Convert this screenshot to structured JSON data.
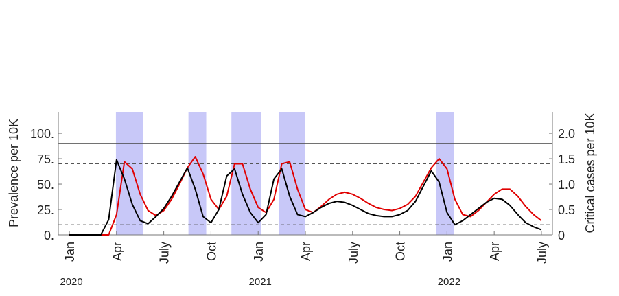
{
  "chart_data": {
    "type": "line",
    "y_label": "Prevalence per 10K",
    "y2_label": "Critical cases per 10K",
    "x": [
      0,
      0.5,
      1,
      1.5,
      2,
      2.5,
      3,
      3.5,
      4,
      4.5,
      5,
      5.5,
      6,
      6.5,
      7,
      7.5,
      8,
      8.5,
      9,
      9.5,
      10,
      10.5,
      11,
      11.5,
      12,
      12.5,
      13,
      13.5,
      14,
      14.5,
      15,
      15.5,
      16,
      16.5,
      17,
      17.5,
      18,
      18.5,
      19,
      19.5,
      20,
      20.5,
      21,
      21.5,
      22,
      22.5,
      23,
      23.5,
      24,
      24.5,
      25,
      25.5,
      26,
      26.5,
      27,
      27.5,
      28,
      28.5,
      29,
      29.5,
      30
    ],
    "series": [
      {
        "color": "#e00000",
        "values": [
          0,
          0,
          0,
          0,
          0,
          0,
          20,
          72,
          65,
          40,
          24,
          19,
          24,
          35,
          50,
          66,
          77,
          60,
          35,
          25,
          38,
          70,
          70,
          45,
          27,
          22,
          35,
          70,
          72,
          45,
          25,
          22,
          28,
          35,
          40,
          42,
          40,
          36,
          31,
          27,
          25,
          24,
          26,
          30,
          38,
          52,
          66,
          75,
          65,
          35,
          20,
          18,
          24,
          32,
          40,
          45,
          45,
          38,
          28,
          20,
          14
        ]
      },
      {
        "color": "#000000",
        "values": [
          0,
          0,
          0,
          0,
          0,
          15,
          74,
          55,
          30,
          14,
          11,
          18,
          26,
          38,
          52,
          66,
          45,
          18,
          12,
          25,
          58,
          65,
          40,
          22,
          12,
          20,
          55,
          65,
          38,
          20,
          18,
          22,
          27,
          31,
          33,
          32,
          29,
          25,
          21,
          19,
          18,
          18,
          20,
          24,
          33,
          48,
          63,
          52,
          22,
          10,
          14,
          20,
          26,
          32,
          36,
          35,
          29,
          20,
          12,
          8,
          5
        ]
      }
    ],
    "xlim": [
      -0.7,
      30.7
    ],
    "xticks": [
      {
        "value": 0,
        "label": "Jan"
      },
      {
        "value": 3,
        "label": "Apr"
      },
      {
        "value": 6,
        "label": "July"
      },
      {
        "value": 9,
        "label": "Oct"
      },
      {
        "value": 12,
        "label": "Jan"
      },
      {
        "value": 15,
        "label": "Apr"
      },
      {
        "value": 18,
        "label": "July"
      },
      {
        "value": 21,
        "label": "Oct"
      },
      {
        "value": 24,
        "label": "Jan"
      },
      {
        "value": 27,
        "label": "Apr"
      },
      {
        "value": 30,
        "label": "July"
      }
    ],
    "ylim": [
      0,
      121
    ],
    "yticks": [
      {
        "value": 0,
        "label": "0."
      },
      {
        "value": 25,
        "label": "25."
      },
      {
        "value": 50,
        "label": "50."
      },
      {
        "value": 75,
        "label": "75."
      },
      {
        "value": 100,
        "label": "100."
      }
    ],
    "y2lim": [
      0,
      2.42
    ],
    "y2ticks": [
      0,
      0.5,
      {
        "value": 1,
        "label": "1.0"
      },
      {
        "value": 1.5,
        "label": "1.5"
      },
      {
        "value": 2,
        "label": "2.0"
      }
    ],
    "hlines": [
      {
        "value": 90,
        "style": "solid"
      },
      {
        "value": 70,
        "style": "dashed"
      },
      {
        "value": 10,
        "style": "dashed"
      }
    ],
    "shaded_regions": [
      [
        2.96,
        4.7
      ],
      [
        7.57,
        8.7
      ],
      [
        10.3,
        12.17
      ],
      [
        13.3,
        14.96
      ],
      [
        23.3,
        24.43
      ]
    ],
    "shade_color": "#c8c8f8",
    "year_labels": [
      {
        "x": 0,
        "text": "2020"
      },
      {
        "x": 12,
        "text": "2021"
      },
      {
        "x": 24,
        "text": "2022"
      }
    ]
  }
}
